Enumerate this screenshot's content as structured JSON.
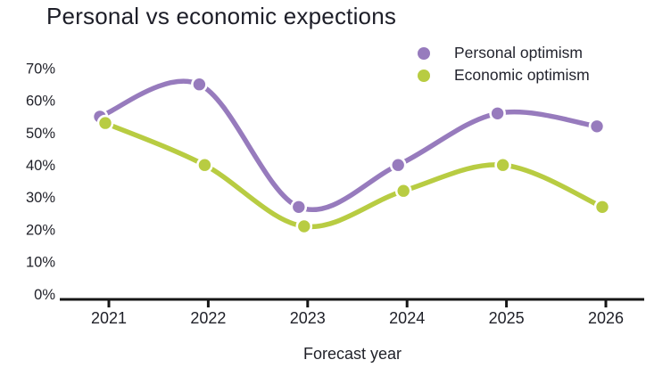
{
  "title": "Personal vs economic expections",
  "legend": {
    "items": [
      {
        "label": "Personal optimism",
        "color": "#977bbd"
      },
      {
        "label": "Economic optimism",
        "color": "#b8cc42"
      }
    ]
  },
  "chart_data": {
    "type": "line",
    "title": "Personal vs economic expections",
    "x": [
      "2021",
      "2022",
      "2023",
      "2024",
      "2025",
      "2026"
    ],
    "series": [
      {
        "name": "Personal optimism",
        "color": "#977bbd",
        "values": [
          55,
          65,
          27,
          40,
          56,
          52
        ]
      },
      {
        "name": "Economic optimism",
        "color": "#b8cc42",
        "values": [
          53,
          40,
          21,
          32,
          40,
          27
        ]
      }
    ],
    "xlabel": "Forecast year",
    "ylabel": "",
    "ylim": [
      0,
      70
    ],
    "y_tick_step": 10,
    "y_ticks": [
      "0%",
      "10%",
      "20%",
      "30%",
      "40%",
      "50%",
      "60%",
      "70%"
    ],
    "grid": false,
    "legend_position": "top-right",
    "marker": "circle",
    "line_style": "smooth"
  },
  "colors": {
    "background": "#ffffff",
    "axis": "#161616",
    "text": "#1f2028",
    "marker_rim": "#ffffff"
  }
}
